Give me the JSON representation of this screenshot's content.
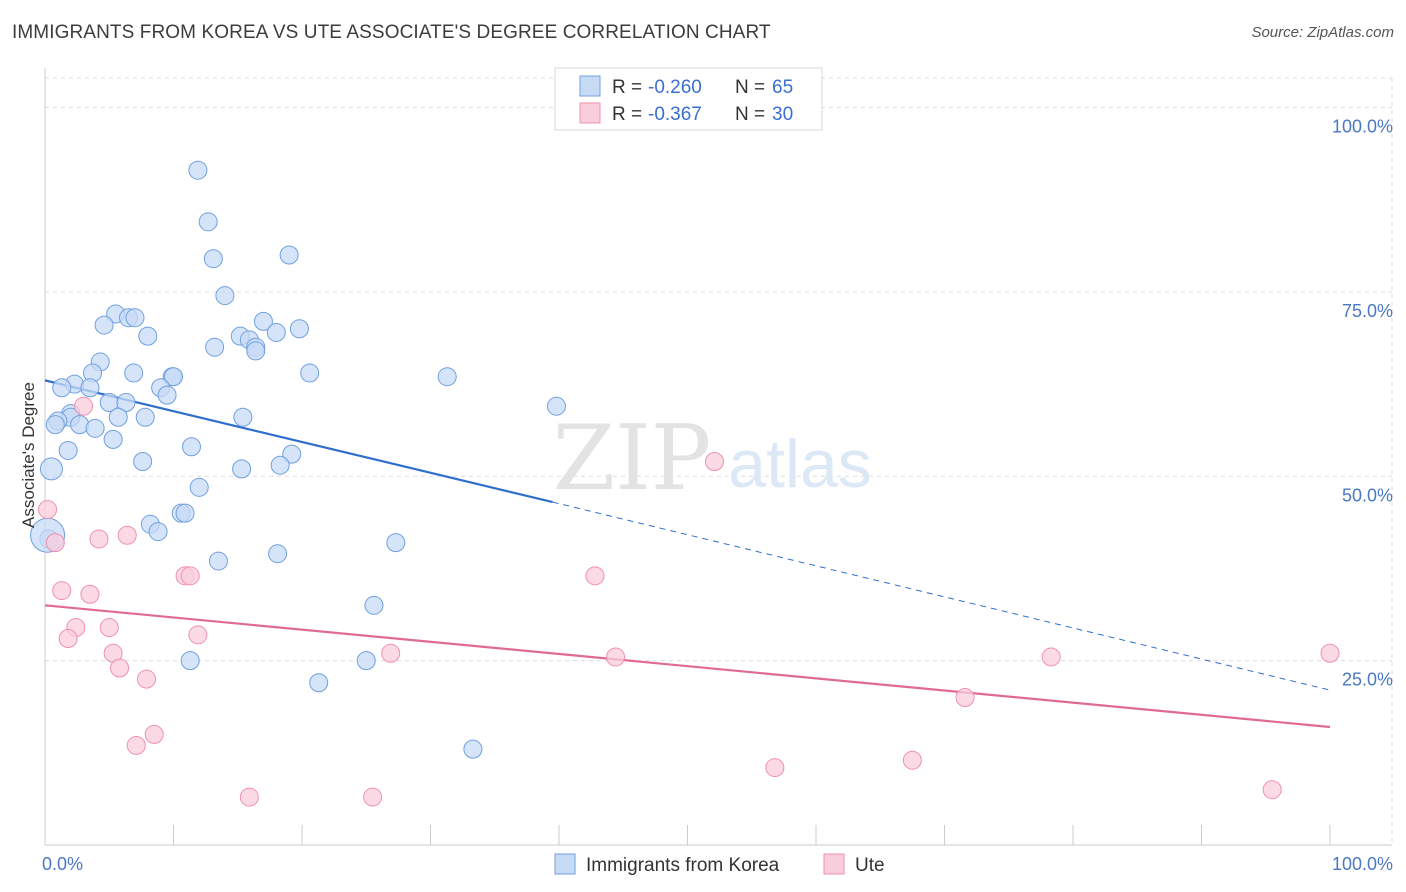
{
  "title": "IMMIGRANTS FROM KOREA VS UTE ASSOCIATE'S DEGREE CORRELATION CHART",
  "source": "Source: ZipAtlas.com",
  "watermark": {
    "zip": "ZIP",
    "atlas": "atlas"
  },
  "chart_data": {
    "type": "scatter",
    "ylabel": "Associate's Degree",
    "xlim": [
      0,
      100
    ],
    "ylim": [
      0,
      104
    ],
    "x_tick_labels": [
      {
        "value": 0,
        "label": "0.0%"
      },
      {
        "value": 100,
        "label": "100.0%"
      }
    ],
    "y_tick_labels": [
      {
        "value": 25,
        "label": "25.0%"
      },
      {
        "value": 50,
        "label": "50.0%"
      },
      {
        "value": 75,
        "label": "75.0%"
      },
      {
        "value": 100,
        "label": "100.0%"
      }
    ],
    "legend": {
      "rows": [
        {
          "r_label": "R = ",
          "r_value": "-0.260",
          "n_label": "N = ",
          "n_value": "65"
        },
        {
          "r_label": "R = ",
          "r_value": "-0.367",
          "n_label": "N = ",
          "n_value": "30"
        }
      ]
    },
    "series": [
      {
        "name": "Immigrants from Korea",
        "color": "#6fa0e0",
        "fill": "#c7dbf5",
        "line_color": "#2f6fcc",
        "trend": {
          "x0": 0,
          "y0": 63.0,
          "x1": 39.5,
          "y1": 46.5,
          "dash_to_x": 100,
          "dash_to_y": 21.0
        },
        "points": [
          [
            11.9,
            91.5
          ],
          [
            12.7,
            84.5
          ],
          [
            13.1,
            79.5
          ],
          [
            14.0,
            74.5
          ],
          [
            19.0,
            80.0
          ],
          [
            5.5,
            72.0
          ],
          [
            6.5,
            71.5
          ],
          [
            7.0,
            71.5
          ],
          [
            4.6,
            70.5
          ],
          [
            17.0,
            71.0
          ],
          [
            19.8,
            70.0
          ],
          [
            18.0,
            69.5
          ],
          [
            8.0,
            69.0
          ],
          [
            15.2,
            69.0
          ],
          [
            15.9,
            68.5
          ],
          [
            16.4,
            67.5
          ],
          [
            16.4,
            67.0
          ],
          [
            13.2,
            67.5
          ],
          [
            4.3,
            65.5
          ],
          [
            3.7,
            64.0
          ],
          [
            6.9,
            64.0
          ],
          [
            9.9,
            63.5
          ],
          [
            10.0,
            63.5
          ],
          [
            20.6,
            64.0
          ],
          [
            31.3,
            63.5
          ],
          [
            2.3,
            62.5
          ],
          [
            1.3,
            62.0
          ],
          [
            3.5,
            62.0
          ],
          [
            9.0,
            62.0
          ],
          [
            9.5,
            61.0
          ],
          [
            5.0,
            60.0
          ],
          [
            6.3,
            60.0
          ],
          [
            39.8,
            59.5
          ],
          [
            2.0,
            58.5
          ],
          [
            2.0,
            58.0
          ],
          [
            5.7,
            58.0
          ],
          [
            7.8,
            58.0
          ],
          [
            15.4,
            58.0
          ],
          [
            1.0,
            57.5
          ],
          [
            0.8,
            57.0
          ],
          [
            2.7,
            57.0
          ],
          [
            3.9,
            56.5
          ],
          [
            5.3,
            55.0
          ],
          [
            11.4,
            54.0
          ],
          [
            19.2,
            53.0
          ],
          [
            1.8,
            53.5
          ],
          [
            7.6,
            52.0
          ],
          [
            18.3,
            51.5
          ],
          [
            15.3,
            51.0
          ],
          [
            0.5,
            51.0
          ],
          [
            12.0,
            48.5
          ],
          [
            10.6,
            45.0
          ],
          [
            10.9,
            45.0
          ],
          [
            8.2,
            43.5
          ],
          [
            8.8,
            42.5
          ],
          [
            27.3,
            41.0
          ],
          [
            0.3,
            41.5
          ],
          [
            18.1,
            39.5
          ],
          [
            13.5,
            38.5
          ],
          [
            25.6,
            32.5
          ],
          [
            11.3,
            25.0
          ],
          [
            25.0,
            25.0
          ],
          [
            21.3,
            22.0
          ],
          [
            33.3,
            13.0
          ],
          [
            0.2,
            42.0
          ]
        ]
      },
      {
        "name": "Ute",
        "color": "#f08fb0",
        "fill": "#f9cddc",
        "line_color": "#e06a94",
        "trend": {
          "x0": 0,
          "y0": 32.5,
          "x1": 100,
          "y1": 16.0
        },
        "points": [
          [
            0.2,
            45.5
          ],
          [
            0.8,
            41.0
          ],
          [
            3.0,
            59.5
          ],
          [
            4.2,
            41.5
          ],
          [
            6.4,
            42.0
          ],
          [
            52.1,
            52.0
          ],
          [
            1.3,
            34.5
          ],
          [
            3.5,
            34.0
          ],
          [
            10.9,
            36.5
          ],
          [
            11.3,
            36.5
          ],
          [
            42.8,
            36.5
          ],
          [
            2.4,
            29.5
          ],
          [
            5.0,
            29.5
          ],
          [
            1.8,
            28.0
          ],
          [
            11.9,
            28.5
          ],
          [
            5.3,
            26.0
          ],
          [
            26.9,
            26.0
          ],
          [
            44.4,
            25.5
          ],
          [
            78.3,
            25.5
          ],
          [
            100.0,
            26.0
          ],
          [
            5.8,
            24.0
          ],
          [
            7.9,
            22.5
          ],
          [
            71.6,
            20.0
          ],
          [
            8.5,
            15.0
          ],
          [
            7.1,
            13.5
          ],
          [
            67.5,
            11.5
          ],
          [
            56.8,
            10.5
          ],
          [
            15.9,
            6.5
          ],
          [
            25.5,
            6.5
          ],
          [
            95.5,
            7.5
          ]
        ]
      }
    ]
  }
}
